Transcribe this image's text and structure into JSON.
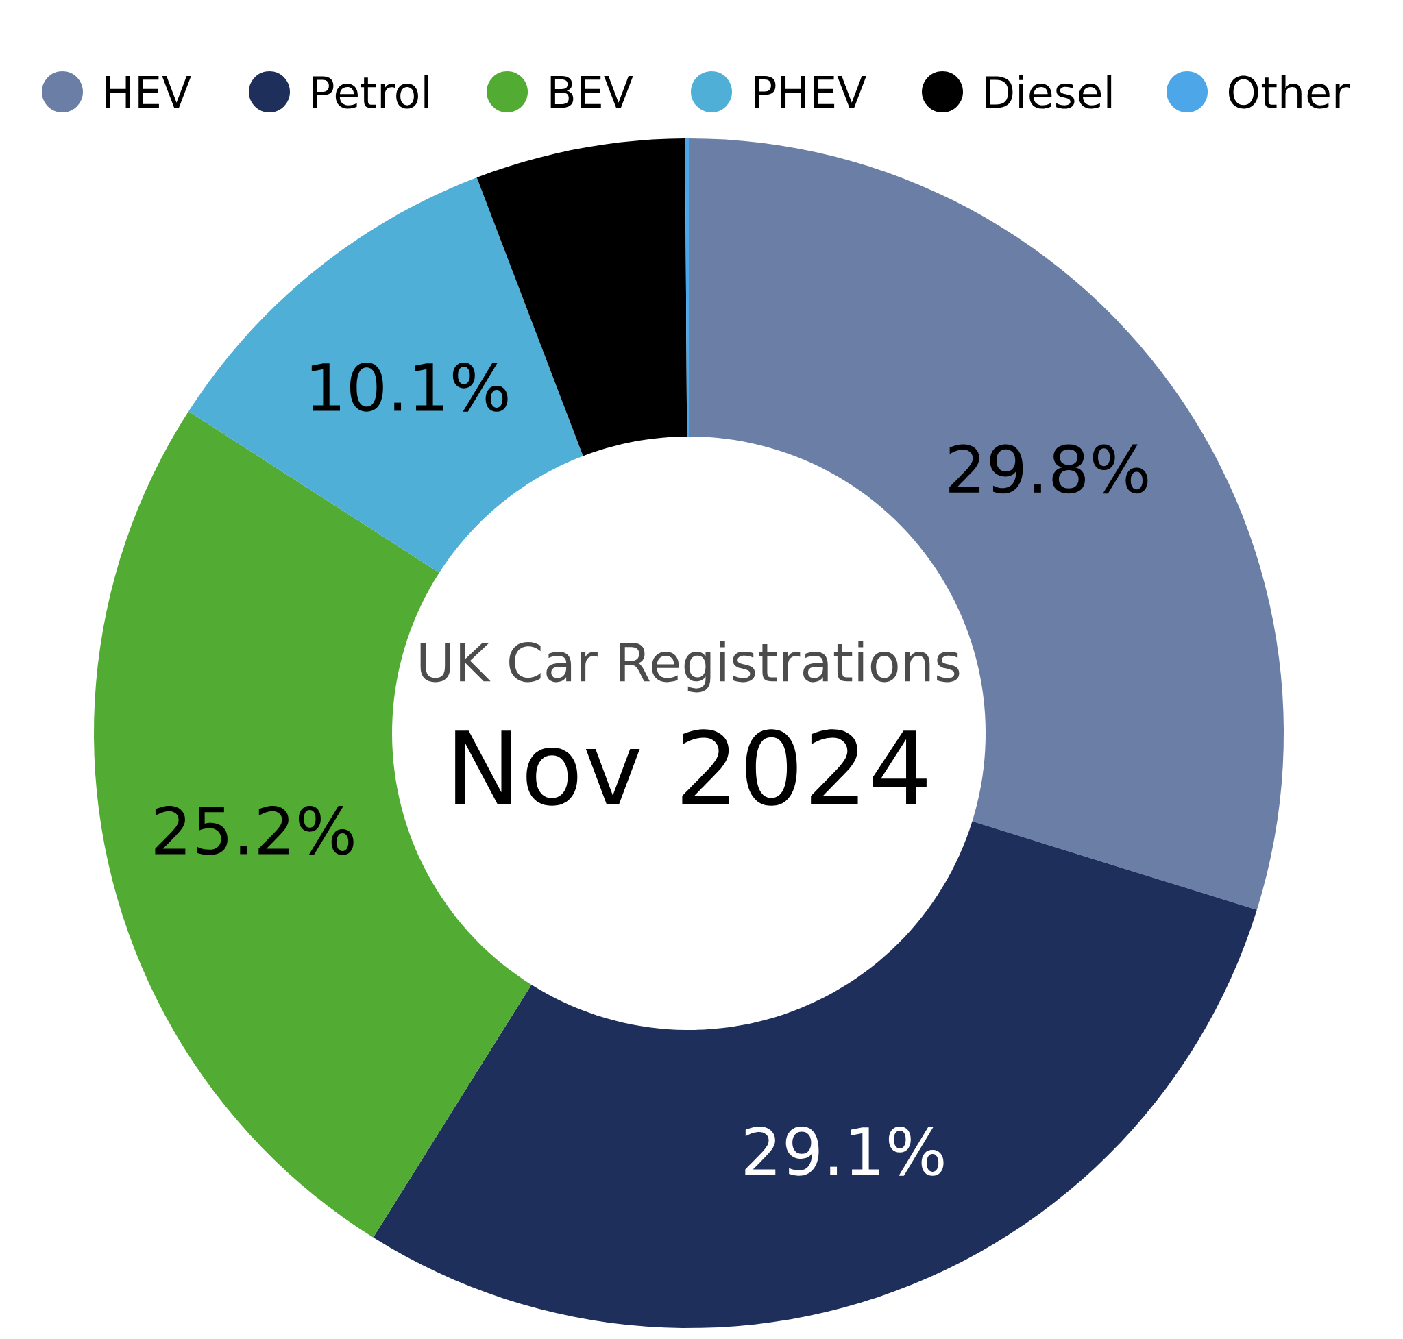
{
  "chart_data": {
    "type": "donut",
    "title": "UK Car Registrations",
    "subtitle": "Nov 2024",
    "categories": [
      "HEV",
      "Petrol",
      "BEV",
      "PHEV",
      "Diesel",
      "Other"
    ],
    "values": [
      29.8,
      29.1,
      25.2,
      10.1,
      5.7,
      0.1
    ],
    "colors": [
      "#6b7fa6",
      "#1f2f5c",
      "#52ab32",
      "#50afd6",
      "#000000",
      "#4da6e8"
    ],
    "value_labels": [
      "29.8%",
      "29.1%",
      "25.2%",
      "10.1%",
      null,
      null
    ],
    "legend": "top"
  }
}
